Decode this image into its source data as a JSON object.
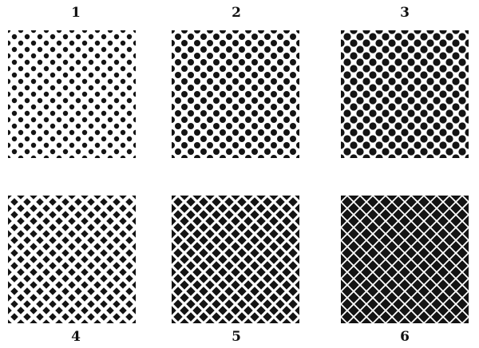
{
  "panels": [
    {
      "label": "1",
      "shape": "dot",
      "size": 0.4
    },
    {
      "label": "2",
      "shape": "dot",
      "size": 0.5
    },
    {
      "label": "3",
      "shape": "dot",
      "size": 0.58
    },
    {
      "label": "4",
      "shape": "diamond",
      "size": 0.6
    },
    {
      "label": "5",
      "shape": "diamond",
      "size": 0.72
    },
    {
      "label": "6",
      "shape": "diamond",
      "size": 0.84
    }
  ],
  "colors": {
    "ink": "#141414",
    "paper": "#ffffff"
  }
}
